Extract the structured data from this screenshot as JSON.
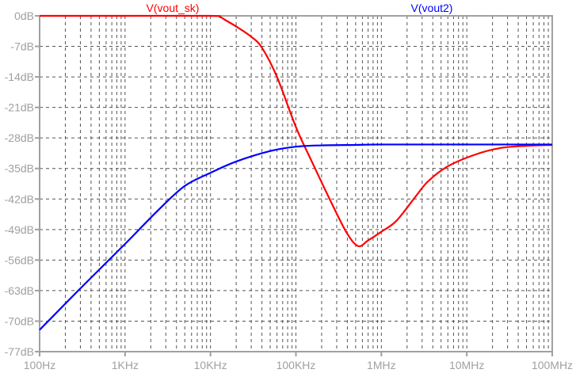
{
  "chart_data": {
    "type": "line",
    "x_scale": "log",
    "xlim": [
      100,
      100000000
    ],
    "ylim": [
      -77,
      0
    ],
    "grid": true,
    "x_ticks": [
      {
        "value": 100,
        "label": "100Hz"
      },
      {
        "value": 1000,
        "label": "1KHz"
      },
      {
        "value": 10000,
        "label": "10KHz"
      },
      {
        "value": 100000,
        "label": "100KHz"
      },
      {
        "value": 1000000,
        "label": "1MHz"
      },
      {
        "value": 10000000,
        "label": "10MHz"
      },
      {
        "value": 100000000,
        "label": "100MHz"
      }
    ],
    "y_ticks": [
      {
        "value": 0,
        "label": "0dB"
      },
      {
        "value": -7,
        "label": "-7dB"
      },
      {
        "value": -14,
        "label": "-14dB"
      },
      {
        "value": -21,
        "label": "-21dB"
      },
      {
        "value": -28,
        "label": "-28dB"
      },
      {
        "value": -35,
        "label": "-35dB"
      },
      {
        "value": -42,
        "label": "-42dB"
      },
      {
        "value": -49,
        "label": "-49dB"
      },
      {
        "value": -56,
        "label": "-56dB"
      },
      {
        "value": -63,
        "label": "-63dB"
      },
      {
        "value": -70,
        "label": "-70dB"
      },
      {
        "value": -77,
        "label": "-77dB"
      }
    ],
    "series": [
      {
        "name": "V(vout_sk)",
        "color": "#ff0000",
        "x": [
          100,
          1000,
          10000,
          13000,
          15000,
          21000,
          30000,
          40000,
          60000,
          100000,
          150000,
          270000,
          400000,
          537000,
          700000,
          1000000,
          1500000,
          2500000,
          3500000,
          6000000,
          12600000,
          25000000,
          50000000,
          100000000
        ],
        "y": [
          0,
          0,
          0,
          -0.3,
          -1,
          -2.7,
          -4.8,
          -7.3,
          -14,
          -25.5,
          -33,
          -43.5,
          -50,
          -52.8,
          -51.5,
          -49.5,
          -47,
          -41.5,
          -38,
          -34.5,
          -31.8,
          -30.3,
          -29.8,
          -29.6
        ]
      },
      {
        "name": "V(vout2)",
        "color": "#0000ff",
        "x": [
          100,
          300,
          1000,
          2460,
          5000,
          10000,
          20000,
          50000,
          100000,
          200000,
          500000,
          1000000,
          10000000,
          100000000
        ],
        "y": [
          -72,
          -62.5,
          -52.3,
          -44.5,
          -39,
          -36,
          -33.4,
          -31,
          -30,
          -29.7,
          -29.6,
          -29.5,
          -29.5,
          -29.5
        ]
      }
    ]
  }
}
